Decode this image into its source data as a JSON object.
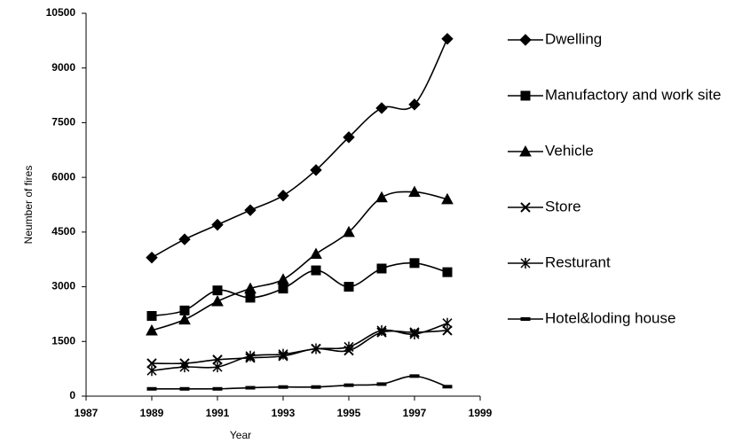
{
  "chart_data": {
    "type": "line",
    "x_label": "Year",
    "y_label": "Neumber of fires",
    "x": [
      1989,
      1990,
      1991,
      1992,
      1993,
      1994,
      1995,
      1996,
      1997,
      1998
    ],
    "xlim": [
      1987,
      1999
    ],
    "xticks": [
      1987,
      1989,
      1991,
      1993,
      1995,
      1997,
      1999
    ],
    "ylim": [
      0,
      10500
    ],
    "yticks": [
      0,
      1500,
      3000,
      4500,
      6000,
      7500,
      9000,
      10500
    ],
    "smooth": true,
    "legend": "right",
    "series": [
      {
        "name": "Dwelling",
        "color": "#000000",
        "marker": "diamond",
        "values": [
          3800,
          4300,
          4700,
          5100,
          5500,
          6200,
          7100,
          7900,
          8000,
          9800
        ]
      },
      {
        "name": "Manufactory and work site",
        "color": "#000000",
        "marker": "square",
        "values": [
          2200,
          2350,
          2900,
          2700,
          2950,
          3450,
          3000,
          3500,
          3650,
          3400
        ]
      },
      {
        "name": "Vehicle",
        "color": "#000000",
        "marker": "triangle",
        "values": [
          1800,
          2100,
          2600,
          2950,
          3200,
          3900,
          4500,
          5450,
          5600,
          5400
        ]
      },
      {
        "name": "Store",
        "color": "#000000",
        "marker": "x",
        "values": [
          900,
          900,
          1000,
          1050,
          1100,
          1300,
          1250,
          1750,
          1750,
          1800
        ]
      },
      {
        "name": "Resturant",
        "color": "#000000",
        "marker": "star",
        "values": [
          700,
          800,
          800,
          1100,
          1150,
          1300,
          1350,
          1800,
          1700,
          2000
        ]
      },
      {
        "name": "Hotel&loding house",
        "color": "#000000",
        "marker": "dash",
        "values": [
          200,
          200,
          200,
          230,
          250,
          250,
          300,
          330,
          550,
          260
        ]
      }
    ]
  }
}
